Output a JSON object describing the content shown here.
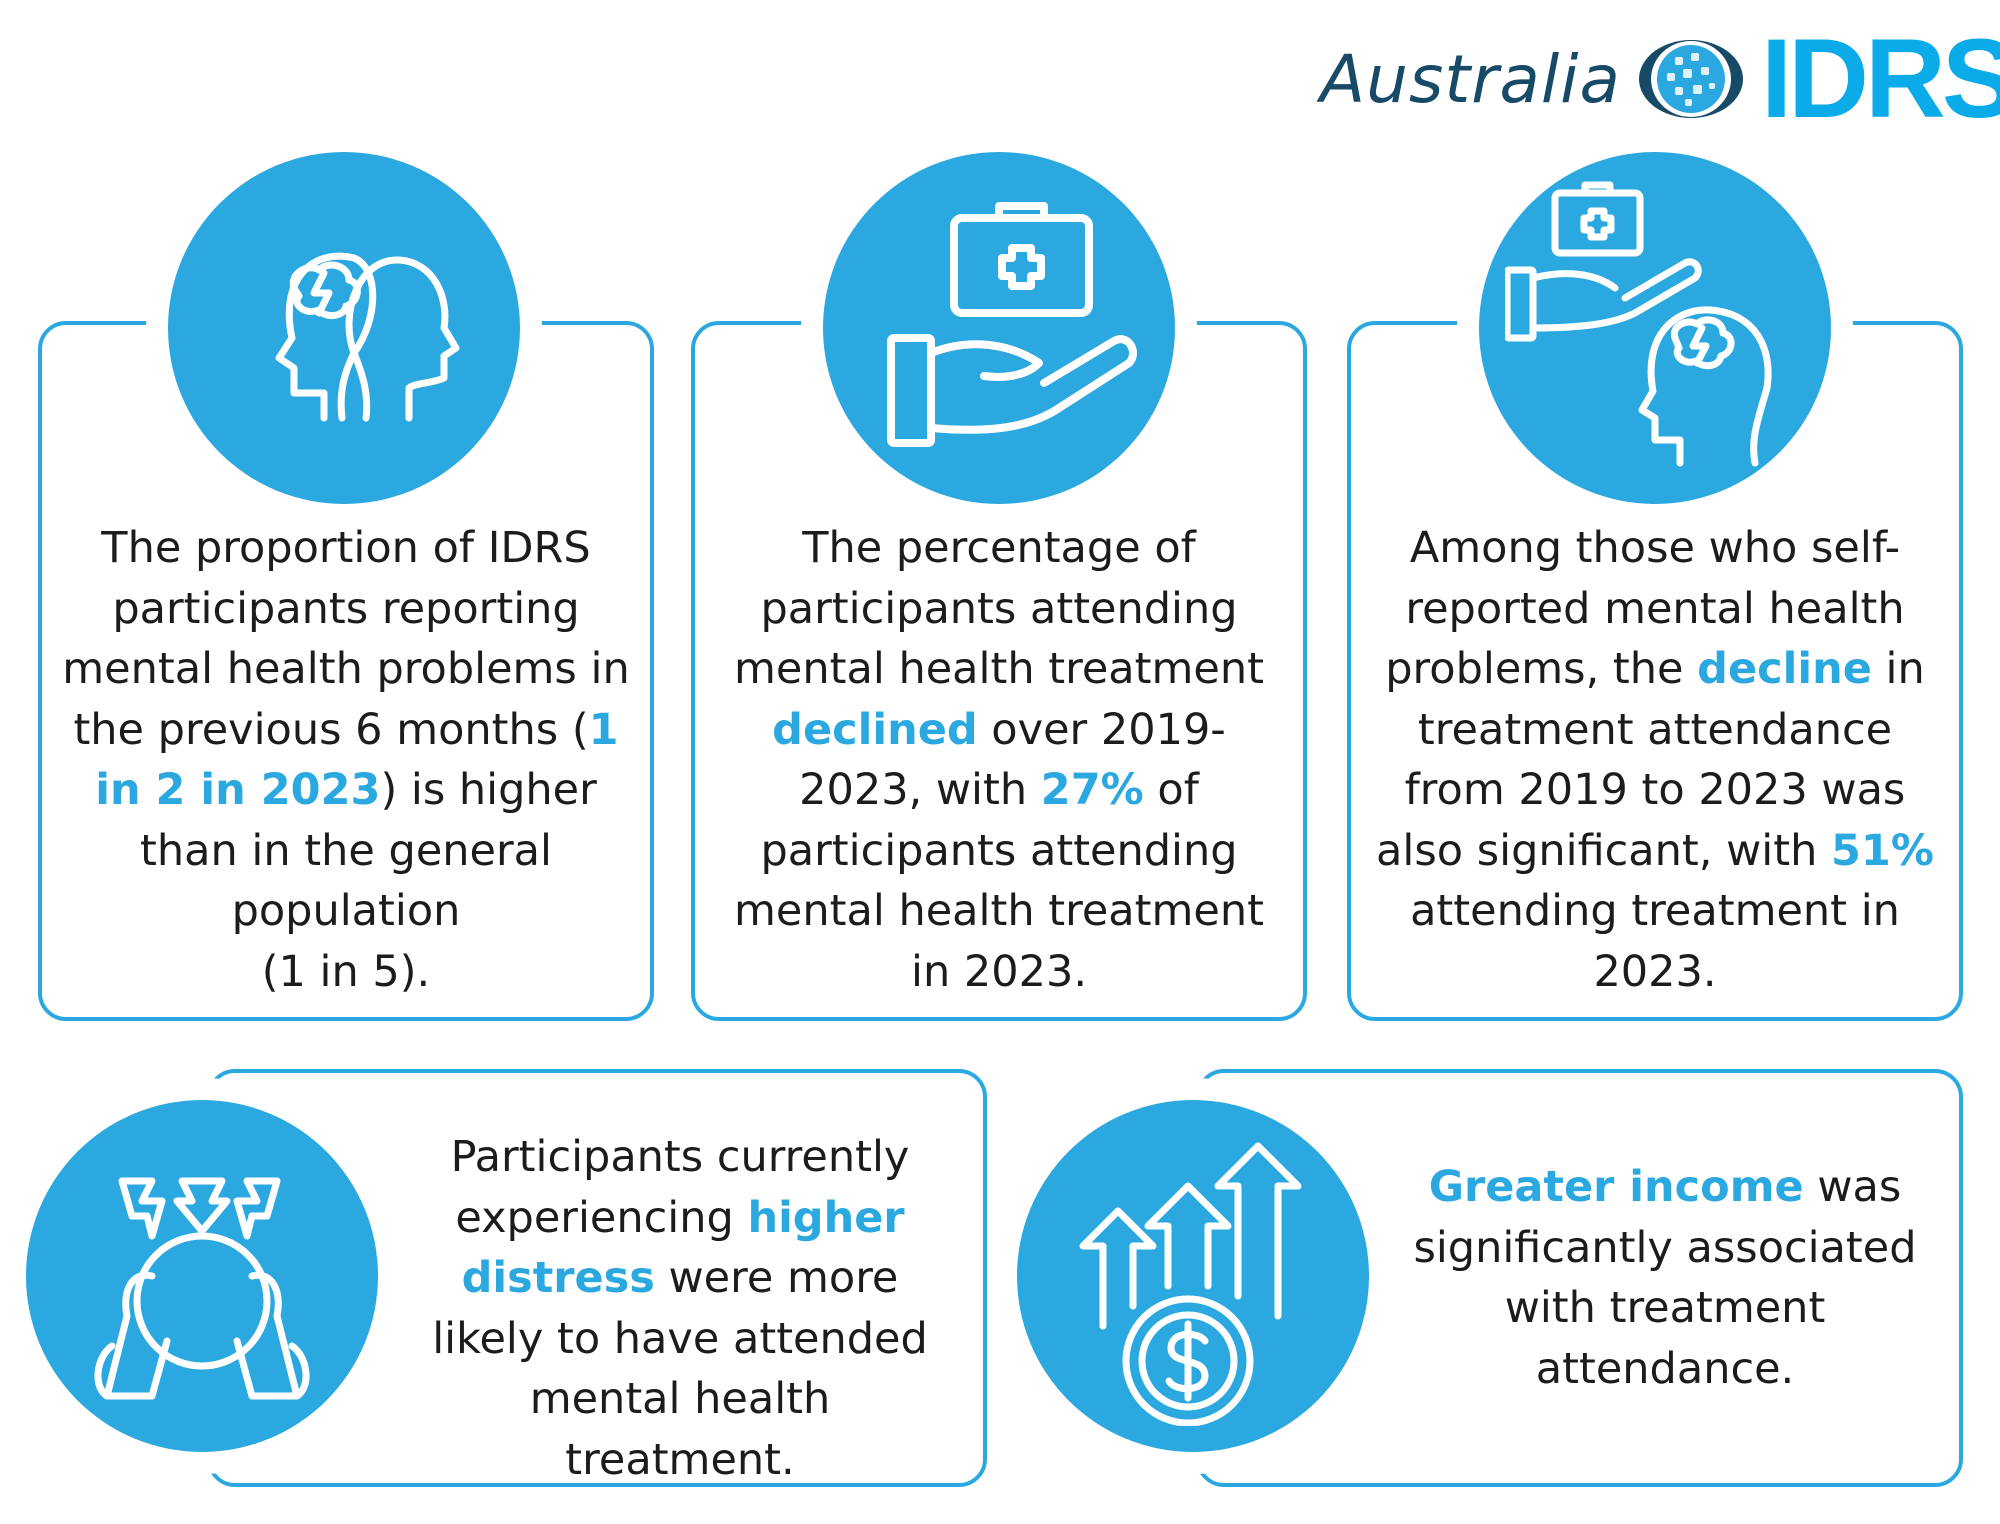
{
  "logo": {
    "country": "Australia",
    "brand": "IDRS"
  },
  "colors": {
    "accent": "#2ca8e0",
    "text": "#1c1c1c",
    "logo_dark": "#174a66"
  },
  "cards": [
    {
      "icon": "two-heads-brain-icon",
      "segments": [
        "The proportion of IDRS participants reporting mental health problems in the previous 6 months (",
        "1 in 2 in 2023",
        ") is higher than in the general population",
        "(1 in 5)."
      ]
    },
    {
      "icon": "hand-medical-kit-icon",
      "segments": [
        "The percentage of participants attending mental health treatment ",
        "declined",
        " over 2019-2023, with ",
        "27%",
        " of participants attending mental health treatment in 2023."
      ]
    },
    {
      "icon": "hand-kit-head-brain-icon",
      "segments": [
        "Among those who self-reported mental health problems, the ",
        "decline",
        " in treatment attendance from 2019 to 2023 was also significant, with ",
        "51%",
        " attending treatment in 2023."
      ]
    },
    {
      "icon": "distressed-person-icon",
      "segments": [
        "Participants currently experiencing ",
        "higher distress",
        " were more likely to have attended mental health treatment."
      ]
    },
    {
      "icon": "income-growth-dollar-icon",
      "segments": [
        "Greater income",
        " was significantly associated with treatment attendance."
      ]
    }
  ]
}
